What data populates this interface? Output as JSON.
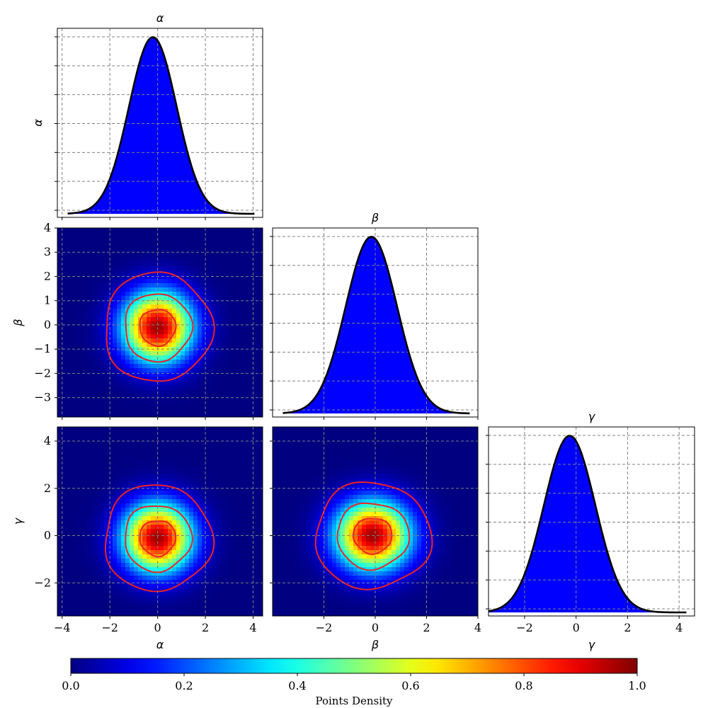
{
  "chart_data": {
    "type": "corner",
    "parameters": [
      "α",
      "β",
      "γ"
    ],
    "marginals": [
      {
        "parameter": "α",
        "title": "α",
        "ylabel": "α",
        "xlim": [
          -4.2,
          4.4
        ],
        "mean": -0.2,
        "std": 1.0,
        "fill_color": "#0000ff",
        "line_color": "#000000",
        "xticks": [
          -4,
          -2,
          0,
          2,
          4
        ]
      },
      {
        "parameter": "β",
        "title": "β",
        "xlim": [
          -4.0,
          4.0
        ],
        "mean": -0.15,
        "std": 1.0,
        "fill_color": "#0000ff",
        "line_color": "#000000",
        "xticks": [
          -2,
          0,
          2,
          4
        ]
      },
      {
        "parameter": "γ",
        "title": "γ",
        "xlabel": "γ",
        "xlim": [
          -3.4,
          4.6
        ],
        "mean": -0.25,
        "std": 1.0,
        "fill_color": "#0000ff",
        "line_color": "#000000",
        "xticks": [
          -2,
          0,
          2,
          4
        ],
        "xticklabels": [
          "−2",
          "0",
          "2",
          "4"
        ]
      }
    ],
    "density_panels": [
      {
        "x": "α",
        "y": "β",
        "xlim": [
          -4.2,
          4.4
        ],
        "ylim": [
          -3.8,
          4.0
        ],
        "center": [
          0.0,
          -0.1
        ],
        "xticks": [
          -4,
          -2,
          0,
          2,
          4
        ],
        "yticks": [
          -3,
          -2,
          -1,
          0,
          1,
          2,
          3,
          4
        ],
        "yticklabels": [
          "−3",
          "−2",
          "−1",
          "0",
          "1",
          "2",
          "3",
          "4"
        ],
        "ylabel": "β",
        "contour_levels_sigma": [
          0.75,
          1.4,
          2.25
        ],
        "contour_color": "#ee2222"
      },
      {
        "x": "α",
        "y": "γ",
        "xlim": [
          -4.2,
          4.4
        ],
        "ylim": [
          -3.4,
          4.6
        ],
        "center": [
          0.0,
          -0.1
        ],
        "xticks": [
          -4,
          -2,
          0,
          2,
          4
        ],
        "xticklabels": [
          "−4",
          "−2",
          "0",
          "2",
          "4"
        ],
        "yticks": [
          -2,
          0,
          2,
          4
        ],
        "yticklabels": [
          "−2",
          "0",
          "2",
          "4"
        ],
        "xlabel": "α",
        "ylabel": "γ",
        "contour_levels_sigma": [
          0.75,
          1.4,
          2.25
        ],
        "contour_color": "#ee2222"
      },
      {
        "x": "β",
        "y": "γ",
        "xlim": [
          -4.0,
          4.0
        ],
        "ylim": [
          -3.4,
          4.6
        ],
        "center": [
          -0.1,
          0.0
        ],
        "xticks": [
          -2,
          0,
          2,
          4
        ],
        "xticklabels": [
          "−2",
          "0",
          "2",
          "4"
        ],
        "yticks": [
          -2,
          0,
          2,
          4
        ],
        "xlabel": "β",
        "contour_levels_sigma": [
          0.75,
          1.4,
          2.25
        ],
        "contour_color": "#ee2222"
      }
    ],
    "colorbar": {
      "title": "Points Density",
      "colormap": "jet",
      "range": [
        0.0,
        1.0
      ],
      "ticks": [
        0.0,
        0.2,
        0.4,
        0.6,
        0.8,
        1.0
      ],
      "ticklabels": [
        "0.0",
        "0.2",
        "0.4",
        "0.6",
        "0.8",
        "1.0"
      ]
    },
    "grid": true,
    "grid_style": "dashed"
  }
}
